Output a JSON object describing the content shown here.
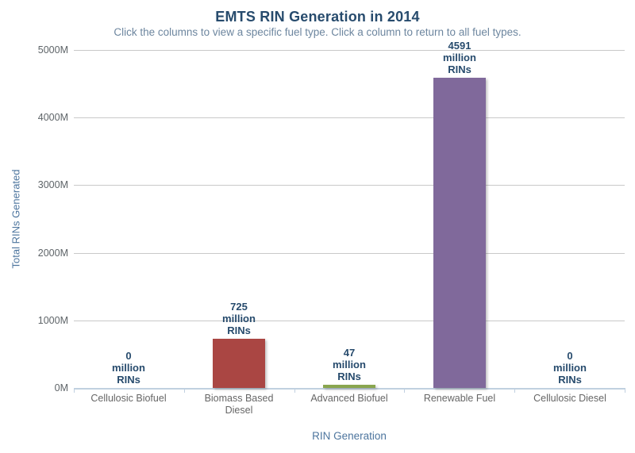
{
  "chart_data": {
    "type": "bar",
    "title": "EMTS RIN Generation in 2014",
    "subtitle": "Click the columns to view a specific fuel type. Click a column to return to all fuel types.",
    "xlabel": "RIN Generation",
    "ylabel": "Total RINs Generated",
    "categories": [
      "Cellulosic Biofuel",
      "Biomass Based Diesel",
      "Advanced Biofuel",
      "Renewable Fuel",
      "Cellulosic Diesel"
    ],
    "values": [
      0,
      725,
      47,
      4591,
      0
    ],
    "bar_value_label_suffix_lines": [
      "million",
      "RINs"
    ],
    "bar_colors": [
      "#4572A7",
      "#AA4643",
      "#89A54E",
      "#80699B",
      "#3D96AE"
    ],
    "ylim": [
      0,
      5000
    ],
    "ytick_interval": 1000,
    "ytick_labels": [
      "0M",
      "1000M",
      "2000M",
      "3000M",
      "4000M",
      "5000M"
    ],
    "grid": true,
    "legend": "none",
    "colors": {
      "title": "#274B6D",
      "subtitle": "#6D869F",
      "axis_title": "#4D759E",
      "tick_label": "#5E6468",
      "category_label": "#666666",
      "data_label": "#274B6D",
      "gridline": "#C9C9C9",
      "axis_line": "#C0D0E0",
      "background": "#FFFFFF"
    }
  }
}
